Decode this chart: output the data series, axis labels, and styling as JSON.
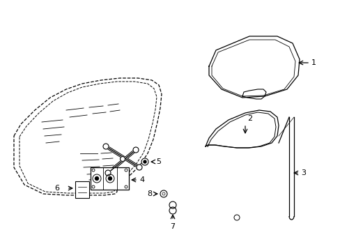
{
  "background_color": "#ffffff",
  "line_color": "#000000",
  "figsize": [
    4.89,
    3.6
  ],
  "dpi": 100,
  "door_outer": {
    "x": [
      18,
      35,
      55,
      80,
      105,
      140,
      175,
      205,
      225,
      232,
      230,
      225,
      215,
      200,
      185,
      178,
      178,
      175,
      165,
      140,
      105,
      65,
      35,
      18,
      18
    ],
    "y": [
      248,
      268,
      280,
      288,
      290,
      292,
      292,
      285,
      268,
      240,
      205,
      165,
      135,
      112,
      98,
      88,
      82,
      78,
      75,
      73,
      73,
      78,
      100,
      135,
      248
    ]
  },
  "door_inner": {
    "x": [
      28,
      42,
      62,
      85,
      108,
      140,
      172,
      198,
      215,
      221,
      219,
      214,
      205,
      192,
      180,
      174,
      174,
      172,
      163,
      140,
      108,
      68,
      42,
      28,
      28
    ],
    "y": [
      245,
      262,
      273,
      282,
      284,
      286,
      286,
      279,
      263,
      237,
      203,
      165,
      136,
      115,
      102,
      93,
      87,
      84,
      81,
      79,
      79,
      84,
      103,
      138,
      245
    ]
  },
  "glass_outer": {
    "x": [
      296,
      310,
      340,
      368,
      388,
      400,
      408,
      410,
      408,
      402,
      390,
      370,
      350,
      330,
      310,
      298,
      296
    ],
    "y": [
      258,
      276,
      290,
      296,
      296,
      292,
      278,
      258,
      230,
      208,
      190,
      176,
      170,
      172,
      190,
      220,
      258
    ]
  },
  "glass_inner": {
    "x": [
      302,
      314,
      340,
      366,
      384,
      395,
      402,
      404,
      402,
      396,
      385,
      366,
      348,
      330,
      312,
      302,
      302
    ],
    "y": [
      256,
      272,
      285,
      291,
      291,
      287,
      274,
      256,
      230,
      210,
      194,
      181,
      176,
      178,
      194,
      222,
      256
    ]
  },
  "channel_outer": {
    "x": [
      300,
      310,
      335,
      358,
      370,
      375,
      375,
      372,
      362,
      345,
      325,
      305,
      298,
      295,
      296,
      300
    ],
    "y": [
      205,
      218,
      232,
      238,
      235,
      225,
      160,
      140,
      120,
      108,
      104,
      108,
      120,
      160,
      190,
      205
    ]
  },
  "channel_inner": {
    "x": [
      304,
      313,
      335,
      356,
      367,
      371,
      371,
      368,
      358,
      343,
      325,
      307,
      301,
      299,
      300,
      304
    ],
    "y": [
      206,
      218,
      230,
      236,
      233,
      223,
      160,
      141,
      122,
      110,
      106,
      110,
      122,
      160,
      190,
      206
    ]
  },
  "strip_outer": {
    "x": [
      384,
      390,
      392,
      392,
      389,
      384
    ],
    "y": [
      188,
      188,
      180,
      110,
      105,
      105
    ]
  },
  "strip_inner": {
    "x": [
      387,
      390,
      392,
      392,
      390,
      387
    ],
    "y": [
      188,
      188,
      183,
      115,
      110,
      110
    ]
  }
}
